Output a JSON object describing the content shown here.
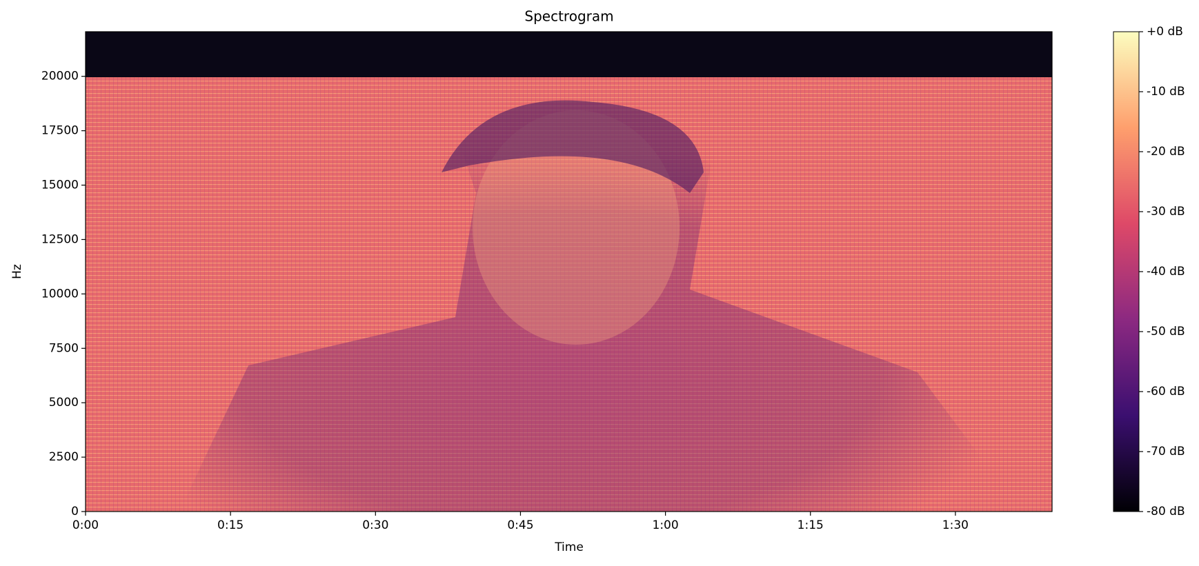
{
  "chart_data": {
    "type": "spectrogram",
    "title": "Spectrogram",
    "x_label": "Time",
    "y_label": "Hz",
    "xlim": [
      0,
      100
    ],
    "ylim": [
      0,
      22050
    ],
    "xticks": [
      {
        "value": 0,
        "label": "0:00"
      },
      {
        "value": 15,
        "label": "0:15"
      },
      {
        "value": 30,
        "label": "0:30"
      },
      {
        "value": 45,
        "label": "0:45"
      },
      {
        "value": 60,
        "label": "1:00"
      },
      {
        "value": 75,
        "label": "1:15"
      },
      {
        "value": 90,
        "label": "1:30"
      }
    ],
    "yticks": [
      0,
      2500,
      5000,
      7500,
      10000,
      12500,
      15000,
      17500,
      20000
    ],
    "colorbar": {
      "lim": [
        -80,
        0
      ],
      "ticks": [
        {
          "value": 0,
          "label": "+0 dB"
        },
        {
          "value": -10,
          "label": "-10 dB"
        },
        {
          "value": -20,
          "label": "-20 dB"
        },
        {
          "value": -30,
          "label": "-30 dB"
        },
        {
          "value": -40,
          "label": "-40 dB"
        },
        {
          "value": -50,
          "label": "-50 dB"
        },
        {
          "value": -60,
          "label": "-60 dB"
        },
        {
          "value": -70,
          "label": "-70 dB"
        },
        {
          "value": -80,
          "label": "-80 dB"
        }
      ],
      "colors": [
        "#000004",
        "#3b0f70",
        "#8c2981",
        "#de4968",
        "#fe9f6d",
        "#fcfdbf"
      ]
    }
  }
}
